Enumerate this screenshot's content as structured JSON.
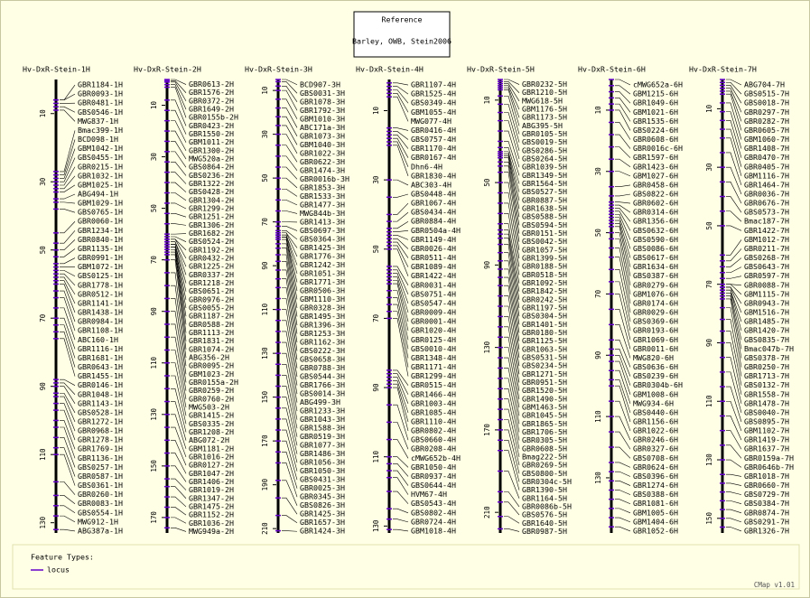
{
  "header": {
    "title": "Reference",
    "subtitle": "Barley, OWB, Stein2006"
  },
  "maps": [
    {
      "title": "Hv-DxR-Stein-1H",
      "ylim": [
        0,
        133
      ],
      "ticks": [
        10,
        30,
        50,
        70,
        90,
        110,
        130
      ],
      "loci": [
        "GBR1184-1H",
        "GBR0093-1H",
        "GBR0481-1H",
        "GBS0546-1H",
        "MWG837-1H",
        "Bmac399-1H",
        "BCD098-1H",
        "GBM1042-1H",
        "GBS0455-1H",
        "GBR0215-1H",
        "GBR1032-1H",
        "GBM1025-1H",
        "ABG494-1H",
        "GBM1029-1H",
        "GBS0765-1H",
        "GBR0060-1H",
        "GBR1234-1H",
        "GBR0840-1H",
        "GBR1135-1H",
        "GBR0991-1H",
        "GBM1072-1H",
        "GBS0125-1H",
        "GBR1778-1H",
        "GBR0512-1H",
        "GBR1141-1H",
        "GBR1438-1H",
        "GBR0984-1H",
        "GBR1108-1H",
        "ABC160-1H",
        "GBR1116-1H",
        "GBR1681-1H",
        "GBR0643-1H",
        "GBR1455-1H",
        "GBR0146-1H",
        "GBR1048-1H",
        "GBR1143-1H",
        "GBS0528-1H",
        "GBR1272-1H",
        "GBR0968-1H",
        "GBR1278-1H",
        "GBR1769-1H",
        "GBR1136-1H",
        "GBS0257-1H",
        "GBR0587-1H",
        "GBS0361-1H",
        "GBR0260-1H",
        "GBR0083-1H",
        "GBS0554-1H",
        "MWG912-1H",
        "ABG387a-1H"
      ],
      "positions": [
        6,
        6,
        7,
        8,
        9,
        27,
        28,
        29,
        30,
        31,
        32,
        33,
        35,
        36,
        38,
        45,
        48,
        50,
        52,
        54,
        55,
        56,
        57,
        58,
        59,
        60,
        62,
        64,
        67,
        70,
        72,
        74,
        76,
        88,
        89,
        90,
        92,
        93,
        95,
        97,
        100,
        102,
        105,
        108,
        110,
        118,
        122,
        125,
        128,
        132
      ]
    },
    {
      "title": "Hv-DxR-Stein-2H",
      "ylim": [
        0,
        176
      ],
      "ticks": [
        10,
        30,
        50,
        70,
        90,
        110,
        130,
        150,
        170
      ],
      "loci": [
        "GBR0613-2H",
        "GBR1576-2H",
        "GBR0372-2H",
        "GBR1649-2H",
        "GBR0155b-2H",
        "GBR0423-2H",
        "GBR1550-2H",
        "GBM1011-2H",
        "GBR1300-2H",
        "MWG520a-2H",
        "GBS0864-2H",
        "GBS0236-2H",
        "GBR1322-2H",
        "GBS0428-2H",
        "GBR1304-2H",
        "GBR1299-2H",
        "GBR1251-2H",
        "GBR1306-2H",
        "GBR1682-2H",
        "GBS0524-2H",
        "GBR1192-2H",
        "GBR0432-2H",
        "GBR1225-2H",
        "GBR0337-2H",
        "GBR1218-2H",
        "GBS0651-2H",
        "GBR0976-2H",
        "GBS0055-2H",
        "GBR1187-2H",
        "GBR0588-2H",
        "GBR1113-2H",
        "GBR1831-2H",
        "GBR1074-2H",
        "ABG356-2H",
        "GBR0095-2H",
        "GBM1023-2H",
        "GBR0155a-2H",
        "GBR0259-2H",
        "GBR0760-2H",
        "MWG503-2H",
        "GBR1415-2H",
        "GBS0335-2H",
        "GBR1208-2H",
        "ABG072-2H",
        "GBM1181-2H",
        "GBR1016-2H",
        "GBR0127-2H",
        "GBR1047-2H",
        "GBR1406-2H",
        "GBR1019-2H",
        "GBR1347-2H",
        "GBR1475-2H",
        "GBR1152-2H",
        "GBR1036-2H",
        "MWG949a-2H"
      ],
      "positions": [
        0,
        0.5,
        1,
        2,
        3,
        8,
        12,
        16,
        20,
        24,
        28,
        32,
        36,
        40,
        44,
        48,
        52,
        56,
        60,
        61,
        62,
        62,
        63,
        63,
        64,
        64,
        65,
        65,
        66,
        66,
        67,
        68,
        70,
        75,
        80,
        85,
        90,
        95,
        100,
        105,
        110,
        115,
        120,
        125,
        130,
        135,
        140,
        145,
        150,
        155,
        158,
        162,
        166,
        170,
        174
      ]
    },
    {
      "title": "Hv-DxR-Stein-3H",
      "ylim": [
        5,
        212
      ],
      "ticks": [
        10,
        30,
        50,
        70,
        90,
        110,
        130,
        150,
        170,
        190,
        210
      ],
      "loci": [
        "BCD907-3H",
        "GBS0031-3H",
        "GBR1078-3H",
        "GBR1792-3H",
        "GBM1010-3H",
        "ABC171a-3H",
        "GBR1073-3H",
        "GBM1040-3H",
        "GBR1022-3H",
        "GBR0622-3H",
        "GBR1474-3H",
        "GBR0016b-3H",
        "GBR1853-3H",
        "GBR1533-3H",
        "GBR1477-3H",
        "MWG844b-3H",
        "GBR1413-3H",
        "GBS0697-3H",
        "GBS0364-3H",
        "GBR1425-3H",
        "GBR1776-3H",
        "GBR1242-3H",
        "GBR1051-3H",
        "GBR1771-3H",
        "GBR0506-3H",
        "GBM1110-3H",
        "GBR0328-3H",
        "GBR1495-3H",
        "GBR1396-3H",
        "GBR1253-3H",
        "GBR1162-3H",
        "GBS0222-3H",
        "GBS0658-3H",
        "GBR0788-3H",
        "GBS0544-3H",
        "GBR1766-3H",
        "GBS0014-3H",
        "ABG499-3H",
        "GBR1233-3H",
        "GBR1043-3H",
        "GBR1588-3H",
        "GBR0519-3H",
        "GBR1077-3H",
        "GBR1486-3H",
        "GBR1056-3H",
        "GBR1050-3H",
        "GBS0431-3H",
        "GBR0025-3H",
        "GBR0345-3H",
        "GBS0826-3H",
        "GBR1425-3H",
        "GBR1657-3H",
        "GBR1424-3H"
      ],
      "positions": [
        5,
        6,
        8,
        10,
        14,
        18,
        22,
        26,
        30,
        35,
        40,
        45,
        50,
        55,
        60,
        65,
        70,
        72,
        74,
        75,
        75,
        76,
        76,
        77,
        77,
        78,
        80,
        82,
        85,
        88,
        92,
        96,
        100,
        105,
        110,
        115,
        120,
        125,
        130,
        135,
        140,
        145,
        150,
        155,
        160,
        165,
        170,
        175,
        180,
        188,
        196,
        204,
        211
      ]
    },
    {
      "title": "Hv-DxR-Stein-4H",
      "ylim": [
        1,
        132
      ],
      "ticks": [
        10,
        30,
        50,
        70,
        90,
        110,
        130
      ],
      "loci": [
        "GBR1107-4H",
        "GBR1525-4H",
        "GBS0349-4H",
        "GBM1055-4H",
        "MWG077-4H",
        "GBR0416-4H",
        "GBS0757-4H",
        "GBR1170-4H",
        "GBR0167-4H",
        "Dhn6-4H",
        "GBR1830-4H",
        "ABC303-4H",
        "GBS0448-4H",
        "GBR1067-4H",
        "GBS0434-4H",
        "GBR0884-4H",
        "GBR0504a-4H",
        "GBR1149-4H",
        "GBR0026-4H",
        "GBR0511-4H",
        "GBR1089-4H",
        "GBR1422-4H",
        "GBR0031-4H",
        "GBS0751-4H",
        "GBS0547-4H",
        "GBR0009-4H",
        "GBR0001-4H",
        "GBR1020-4H",
        "GBR0125-4H",
        "GBS0010-4H",
        "GBR1348-4H",
        "GBR1171-4H",
        "GBR1299-4H",
        "GBR0515-4H",
        "GBR1466-4H",
        "GBR1003-4H",
        "GBR1085-4H",
        "GBR1110-4H",
        "GBR0802-4H",
        "GBS0660-4H",
        "GBR0208-4H",
        "cMWG652b-4H",
        "GBR1050-4H",
        "GBR0937-4H",
        "GBS0644-4H",
        "HVM67-4H",
        "GBS0543-4H",
        "GBS0802-4H",
        "GBR0724-4H",
        "GBM1018-4H"
      ],
      "positions": [
        2,
        3,
        4,
        5,
        6,
        15,
        16,
        17,
        18,
        19,
        20,
        30,
        35,
        40,
        42,
        44,
        45,
        46,
        47,
        48,
        49,
        50,
        55,
        56,
        57,
        58,
        59,
        60,
        62,
        64,
        66,
        68,
        70,
        85,
        86,
        87,
        88,
        89,
        90,
        95,
        100,
        105,
        110,
        112,
        114,
        116,
        120,
        125,
        128,
        131
      ]
    },
    {
      "title": "Hv-DxR-Stein-5H",
      "ylim": [
        0,
        220
      ],
      "ticks": [
        10,
        50,
        90,
        130,
        170,
        210
      ],
      "loci": [
        "GBR0232-5H",
        "GBR1210-5H",
        "MWG618-5H",
        "GBM1176-5H",
        "GBR1173-5H",
        "ABG395-5H",
        "GBR0105-5H",
        "GBS0019-5H",
        "GBS0286-5H",
        "GBS0264-5H",
        "GBR1039-5H",
        "GBR1349-5H",
        "GBR1564-5H",
        "GBS0527-5H",
        "GBR0887-5H",
        "GBR1638-5H",
        "GBS0588-5H",
        "GBS0594-5H",
        "GBR0151-5H",
        "GBS0042-5H",
        "GBR1057-5H",
        "GBR1399-5H",
        "GBR0188-5H",
        "GBR0518-5H",
        "GBR1092-5H",
        "GBR1842-5H",
        "GBR0242-5H",
        "GBR1197-5H",
        "GBS0304-5H",
        "GBR1401-5H",
        "GBR0180-5H",
        "GBR1125-5H",
        "GBR1063-5H",
        "GBS0531-5H",
        "GBS0234-5H",
        "GBR1271-5H",
        "GBR0951-5H",
        "GBR1520-5H",
        "GBR1490-5H",
        "GBM1463-5H",
        "GBR1045-5H",
        "GBR1865-5H",
        "GBR1706-5H",
        "GBR0305-5H",
        "GBR0608-5H",
        "Bmag222-5H",
        "GBR0269-5H",
        "GBS0800-5H",
        "GBR0304c-5H",
        "GBR1390-5H",
        "GBR1164-5H",
        "GBR0086b-5H",
        "GBS0576-5H",
        "GBR1640-5H",
        "GBR0987-5H"
      ],
      "positions": [
        0,
        1,
        2,
        3,
        4,
        5,
        8,
        12,
        16,
        20,
        25,
        30,
        33,
        35,
        36,
        37,
        38,
        40,
        42,
        45,
        50,
        55,
        60,
        65,
        70,
        73,
        75,
        77,
        80,
        84,
        88,
        92,
        96,
        100,
        105,
        110,
        115,
        120,
        125,
        130,
        135,
        140,
        145,
        150,
        155,
        160,
        165,
        170,
        175,
        180,
        190,
        200,
        205,
        212,
        218
      ]
    },
    {
      "title": "Hv-DxR-Stein-6H",
      "ylim": [
        0,
        148
      ],
      "ticks": [
        10,
        30,
        50,
        70,
        90,
        110,
        130
      ],
      "loci": [
        "cMWG652a-6H",
        "GBM1215-6H",
        "GBR1049-6H",
        "GBM1021-6H",
        "GBR1535-6H",
        "GBS0224-6H",
        "GBR0608-6H",
        "GBR0016c-6H",
        "GBR1597-6H",
        "GBR1423-6H",
        "GBM1027-6H",
        "GBR0458-6H",
        "GBS0822-6H",
        "GBR0602-6H",
        "GBR0314-6H",
        "GBR1356-6H",
        "GBS0632-6H",
        "GBS0590-6H",
        "GBS0086-6H",
        "GBS0617-6H",
        "GBR1634-6H",
        "GBS0387-6H",
        "GBR0279-6H",
        "GBM1076-6H",
        "GBR0174-6H",
        "GBR0029-6H",
        "GBS0369-6H",
        "GBR0193-6H",
        "GBR1069-6H",
        "GBR0011-6H",
        "MWG820-6H",
        "GBS0636-6H",
        "GBS0239-6H",
        "GBR0304b-6H",
        "GBM1008-6H",
        "MWG934-6H",
        "GBS0440-6H",
        "GBR1156-6H",
        "GBR1022-6H",
        "GBR0246-6H",
        "GBR0327-6H",
        "GBS0708-6H",
        "GBR0624-6H",
        "GBS0396-6H",
        "GBR1274-6H",
        "GBS0388-6H",
        "GBR1081-6H",
        "GBM1005-6H",
        "GBM1404-6H",
        "GBR1052-6H"
      ],
      "positions": [
        0,
        2,
        4,
        6,
        8,
        10,
        14,
        18,
        22,
        26,
        30,
        35,
        38,
        40,
        41,
        42,
        43,
        44,
        45,
        46,
        47,
        48,
        50,
        52,
        55,
        58,
        62,
        66,
        70,
        75,
        80,
        85,
        88,
        90,
        92,
        95,
        98,
        100,
        105,
        110,
        115,
        120,
        125,
        128,
        131,
        134,
        137,
        140,
        143,
        146
      ]
    },
    {
      "title": "Hv-DxR-Stein-7H",
      "ylim": [
        0,
        155
      ],
      "ticks": [
        10,
        30,
        50,
        70,
        90,
        110,
        130,
        150
      ],
      "loci": [
        "ABG704-7H",
        "GBS0515-7H",
        "GBS0018-7H",
        "GBR0297-7H",
        "GBR0282-7H",
        "GBR0605-7H",
        "GBM1060-7H",
        "GBR1408-7H",
        "GBR0470-7H",
        "GBR0405-7H",
        "GBM1116-7H",
        "GBR1464-7H",
        "GBR0036-7H",
        "GBR0676-7H",
        "GBS0573-7H",
        "Bmac187-7H",
        "GBR1422-7H",
        "GBM1012-7H",
        "GBR0211-7H",
        "GBS0268-7H",
        "GBS0643-7H",
        "GBR0597-7H",
        "GBR0088-7H",
        "GBM1115-7H",
        "GBR0943-7H",
        "GBM1516-7H",
        "GBR1485-7H",
        "GBR1420-7H",
        "GBS0835-7H",
        "Bmac047b-7H",
        "GBS0378-7H",
        "GBR0250-7H",
        "GBR1713-7H",
        "GBS0132-7H",
        "GBR1558-7H",
        "GBR1478-7H",
        "GBS0040-7H",
        "GBS0895-7H",
        "GBM1102-7H",
        "GBR1419-7H",
        "GBR1637-7H",
        "GBR0159a-7H",
        "GBR0646b-7H",
        "GBR1018-7H",
        "GBR0660-7H",
        "GBS0729-7H",
        "GBS0384-7H",
        "GBR0874-7H",
        "GBS0291-7H",
        "GBR1326-7H"
      ],
      "positions": [
        0,
        1,
        2,
        3,
        4,
        5,
        8,
        11,
        14,
        17,
        20,
        25,
        30,
        35,
        40,
        45,
        50,
        60,
        62,
        64,
        66,
        68,
        70,
        70,
        71,
        71,
        72,
        72,
        73,
        74,
        75,
        78,
        82,
        86,
        90,
        95,
        100,
        105,
        110,
        115,
        120,
        125,
        130,
        135,
        138,
        141,
        144,
        147,
        150,
        153
      ]
    }
  ],
  "legend": {
    "title": "Feature Types:",
    "items": [
      "locus"
    ]
  },
  "footer": "CMap v1.01"
}
